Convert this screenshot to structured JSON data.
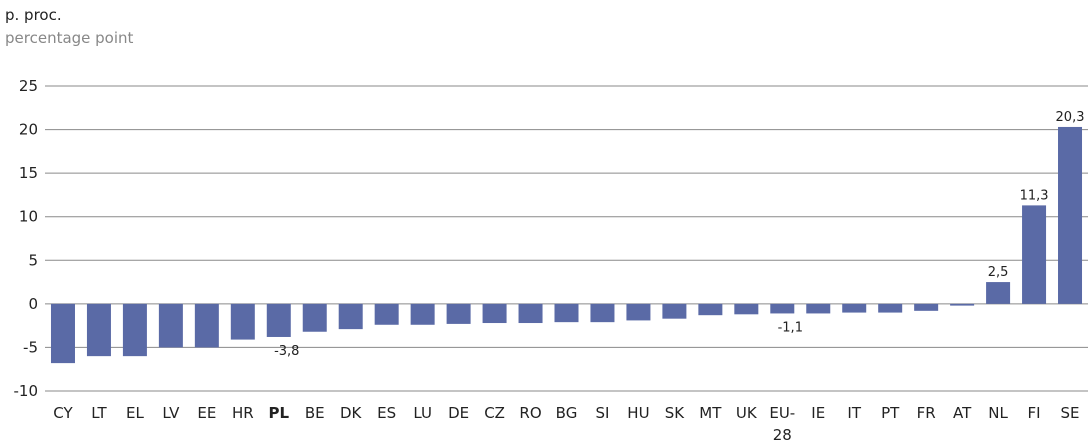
{
  "chart_data": {
    "type": "bar",
    "title": "p. proc.",
    "subtitle": "percentage point",
    "categories": [
      "CY",
      "LT",
      "EL",
      "LV",
      "EE",
      "HR",
      "PL",
      "BE",
      "DK",
      "ES",
      "LU",
      "DE",
      "CZ",
      "RO",
      "BG",
      "SI",
      "HU",
      "SK",
      "MT",
      "UK",
      "EU-28",
      "IE",
      "IT",
      "PT",
      "FR",
      "AT",
      "NL",
      "FI",
      "SE"
    ],
    "values": [
      -6.8,
      -6.0,
      -6.0,
      -5.0,
      -5.0,
      -4.1,
      -3.8,
      -3.2,
      -2.9,
      -2.4,
      -2.4,
      -2.3,
      -2.2,
      -2.2,
      -2.1,
      -2.1,
      -1.9,
      -1.7,
      -1.3,
      -1.2,
      -1.1,
      -1.1,
      -1.0,
      -1.0,
      -0.8,
      -0.2,
      2.5,
      11.3,
      20.3
    ],
    "value_labels": [
      null,
      null,
      null,
      null,
      null,
      null,
      "-3,8",
      null,
      null,
      null,
      null,
      null,
      null,
      null,
      null,
      null,
      null,
      null,
      null,
      null,
      "-1,1",
      null,
      null,
      null,
      null,
      null,
      "2,5",
      "11,3",
      "20,3"
    ],
    "highlight_index": 6,
    "color": "#5a6aa6",
    "ylim": [
      -10,
      25
    ],
    "yticks": [
      -10,
      -5,
      0,
      5,
      10,
      15,
      20,
      25
    ],
    "grid": true
  }
}
